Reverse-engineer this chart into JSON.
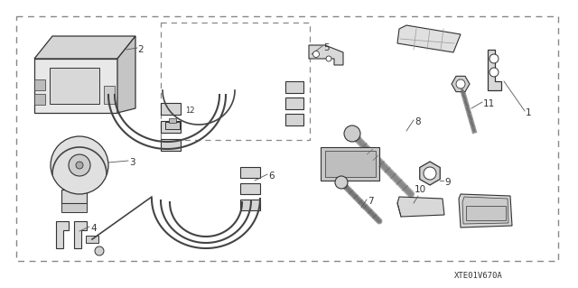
{
  "bg": "white",
  "lc": "#333333",
  "lc2": "#555555",
  "gray": "#bbbbbb",
  "gray2": "#999999",
  "dkgray": "#777777",
  "title": "XTE01V670A",
  "fs": 7.5,
  "fs_small": 6.5
}
